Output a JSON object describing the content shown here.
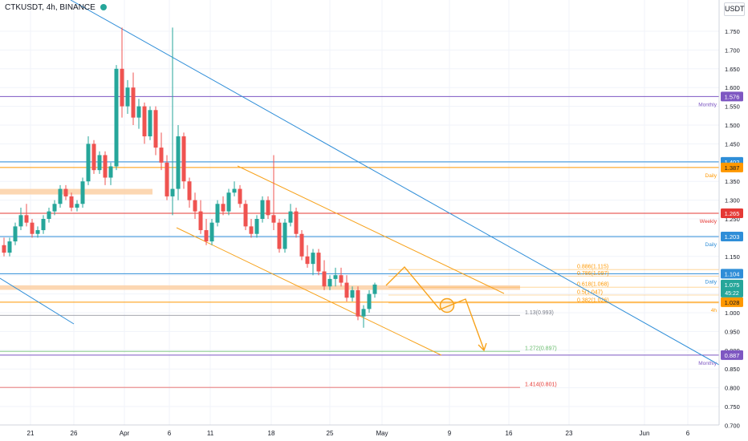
{
  "header": {
    "symbol": "CTKUSDT",
    "timeframe": "4h",
    "exchange": "BINANCE",
    "currency": "USDT"
  },
  "colors": {
    "up": "#26a69a",
    "down": "#ef5350",
    "trendline_blue": "#2f8ed8",
    "channel_orange": "#f7a21b",
    "zone_peach": "#fbd0a5",
    "monthly": "#7e57c2",
    "daily": "#2f8ed8",
    "weekly": "#e53935",
    "fourh": "#ff9800",
    "gray": "#787b86",
    "fib_green": "#66bb6a"
  },
  "chart_data": {
    "type": "candlestick",
    "y_axis": {
      "ticks": [
        "1.750",
        "1.700",
        "1.650",
        "1.600",
        "1.550",
        "1.500",
        "1.450",
        "1.400",
        "1.350",
        "1.300",
        "1.250",
        "1.200",
        "1.150",
        "1.100",
        "1.050",
        "1.000",
        "0.950",
        "0.900",
        "0.850",
        "0.800",
        "0.750",
        "0.700"
      ],
      "range": [
        0.69,
        1.79
      ]
    },
    "x_axis": {
      "ticks": [
        "21",
        "26",
        "Apr",
        "6",
        "11",
        "18",
        "25",
        "May",
        "9",
        "16",
        "23",
        "Jun",
        "6"
      ]
    },
    "horizontal_levels": [
      {
        "price": 1.576,
        "label": "1.576",
        "tag": "Monthly",
        "color": "#7e57c2"
      },
      {
        "price": 1.402,
        "label": "1.402",
        "tag": "",
        "color": "#2f8ed8"
      },
      {
        "price": 1.387,
        "label": "1.387",
        "tag": "Daily",
        "color": "#ff9800"
      },
      {
        "price": 1.265,
        "label": "1.265",
        "tag": "Weekly",
        "color": "#e53935"
      },
      {
        "price": 1.203,
        "label": "1.203",
        "tag": "Daily",
        "color": "#2f8ed8"
      },
      {
        "price": 1.104,
        "label": "1.104",
        "tag": "Daily",
        "color": "#2f8ed8"
      },
      {
        "price": 1.028,
        "label": "1.028",
        "tag": "4h",
        "color": "#ff9800"
      },
      {
        "price": 0.887,
        "label": "0.887",
        "tag": "Monthly",
        "color": "#7e57c2"
      }
    ],
    "last_price": {
      "label": "1.075",
      "countdown": "45:22",
      "price": 1.075
    },
    "fib_levels": [
      {
        "price": 1.115,
        "label": "0.886(1.115)",
        "color": "#ff9800"
      },
      {
        "price": 1.097,
        "label": "0.786(1.097)",
        "color": "#ff9800"
      },
      {
        "price": 1.068,
        "label": "0.618(1.068)",
        "color": "#ff9800"
      },
      {
        "price": 1.047,
        "label": "0.5(1.047)",
        "color": "#ff9800"
      },
      {
        "price": 1.026,
        "label": "0.382(1.026)",
        "color": "#ff9800"
      },
      {
        "price": 0.993,
        "label": "1.13(0.993)",
        "color": "#787b86"
      },
      {
        "price": 0.897,
        "label": "1.272(0.897)",
        "color": "#66bb6a"
      },
      {
        "price": 0.801,
        "label": "1.414(0.801)",
        "color": "#e53935"
      }
    ],
    "zones": [
      {
        "from_price": 1.315,
        "to_price": 1.33,
        "name": "upper supply zone"
      },
      {
        "from_price": 1.061,
        "to_price": 1.073,
        "name": "lower supply zone"
      }
    ],
    "trend_lines": [
      {
        "name": "main descending trendline",
        "from": [
          0,
          1.81
        ],
        "to": [
          116,
          0.865
        ]
      },
      {
        "name": "small blue trendline",
        "from": [
          0,
          1.07
        ],
        "to": [
          13,
          1.01
        ]
      },
      {
        "name": "channel upper line",
        "from": [
          40,
          1.37
        ],
        "to": [
          85,
          1.05
        ]
      },
      {
        "name": "channel lower line",
        "from": [
          29,
          1.235
        ],
        "to": [
          75,
          0.885
        ]
      }
    ],
    "projection_path": [
      [
        67,
        1.077
      ],
      [
        69,
        1.115
      ],
      [
        75,
        1.0
      ],
      [
        79,
        0.9
      ],
      [
        83,
        0.883
      ]
    ],
    "projection_circle": {
      "x": 75.5,
      "y": 1.021
    },
    "candles_ohlc": [
      [
        1.18,
        1.2,
        1.15,
        1.16
      ],
      [
        1.16,
        1.2,
        1.15,
        1.19
      ],
      [
        1.19,
        1.24,
        1.18,
        1.23
      ],
      [
        1.23,
        1.28,
        1.22,
        1.26
      ],
      [
        1.26,
        1.29,
        1.23,
        1.24
      ],
      [
        1.24,
        1.25,
        1.2,
        1.21
      ],
      [
        1.21,
        1.23,
        1.2,
        1.22
      ],
      [
        1.22,
        1.26,
        1.21,
        1.25
      ],
      [
        1.25,
        1.28,
        1.24,
        1.27
      ],
      [
        1.27,
        1.3,
        1.26,
        1.29
      ],
      [
        1.29,
        1.34,
        1.28,
        1.33
      ],
      [
        1.33,
        1.34,
        1.3,
        1.31
      ],
      [
        1.31,
        1.32,
        1.27,
        1.28
      ],
      [
        1.28,
        1.3,
        1.27,
        1.29
      ],
      [
        1.29,
        1.36,
        1.28,
        1.35
      ],
      [
        1.35,
        1.47,
        1.34,
        1.45
      ],
      [
        1.45,
        1.46,
        1.37,
        1.38
      ],
      [
        1.38,
        1.43,
        1.37,
        1.42
      ],
      [
        1.42,
        1.43,
        1.34,
        1.36
      ],
      [
        1.36,
        1.4,
        1.34,
        1.39
      ],
      [
        1.39,
        1.66,
        1.38,
        1.65
      ],
      [
        1.65,
        1.76,
        1.52,
        1.55
      ],
      [
        1.55,
        1.62,
        1.53,
        1.6
      ],
      [
        1.6,
        1.64,
        1.5,
        1.52
      ],
      [
        1.52,
        1.57,
        1.49,
        1.55
      ],
      [
        1.55,
        1.56,
        1.45,
        1.47
      ],
      [
        1.47,
        1.55,
        1.46,
        1.54
      ],
      [
        1.54,
        1.55,
        1.42,
        1.44
      ],
      [
        1.44,
        1.48,
        1.38,
        1.4
      ],
      [
        1.4,
        1.42,
        1.3,
        1.31
      ],
      [
        1.31,
        1.76,
        1.26,
        1.33
      ],
      [
        1.33,
        1.5,
        1.3,
        1.47
      ],
      [
        1.47,
        1.48,
        1.33,
        1.35
      ],
      [
        1.35,
        1.36,
        1.28,
        1.3
      ],
      [
        1.3,
        1.32,
        1.25,
        1.27
      ],
      [
        1.27,
        1.3,
        1.21,
        1.22
      ],
      [
        1.22,
        1.25,
        1.18,
        1.19
      ],
      [
        1.19,
        1.25,
        1.18,
        1.24
      ],
      [
        1.24,
        1.3,
        1.23,
        1.29
      ],
      [
        1.29,
        1.31,
        1.26,
        1.27
      ],
      [
        1.27,
        1.33,
        1.26,
        1.32
      ],
      [
        1.32,
        1.35,
        1.31,
        1.33
      ],
      [
        1.33,
        1.34,
        1.28,
        1.29
      ],
      [
        1.29,
        1.3,
        1.22,
        1.23
      ],
      [
        1.23,
        1.25,
        1.2,
        1.21
      ],
      [
        1.21,
        1.26,
        1.2,
        1.25
      ],
      [
        1.25,
        1.31,
        1.24,
        1.3
      ],
      [
        1.3,
        1.31,
        1.25,
        1.26
      ],
      [
        1.26,
        1.42,
        1.22,
        1.24
      ],
      [
        1.24,
        1.25,
        1.16,
        1.17
      ],
      [
        1.17,
        1.25,
        1.16,
        1.24
      ],
      [
        1.24,
        1.29,
        1.23,
        1.27
      ],
      [
        1.27,
        1.28,
        1.2,
        1.21
      ],
      [
        1.21,
        1.22,
        1.14,
        1.15
      ],
      [
        1.15,
        1.18,
        1.12,
        1.13
      ],
      [
        1.13,
        1.17,
        1.1,
        1.16
      ],
      [
        1.16,
        1.17,
        1.1,
        1.11
      ],
      [
        1.11,
        1.14,
        1.06,
        1.07
      ],
      [
        1.07,
        1.1,
        1.06,
        1.09
      ],
      [
        1.09,
        1.12,
        1.07,
        1.1
      ],
      [
        1.1,
        1.12,
        1.07,
        1.08
      ],
      [
        1.08,
        1.1,
        1.03,
        1.04
      ],
      [
        1.04,
        1.07,
        1.03,
        1.06
      ],
      [
        1.06,
        1.07,
        0.98,
        0.99
      ],
      [
        0.99,
        1.02,
        0.96,
        1.01
      ],
      [
        1.01,
        1.06,
        1.0,
        1.05
      ],
      [
        1.05,
        1.08,
        1.04,
        1.075
      ]
    ]
  }
}
